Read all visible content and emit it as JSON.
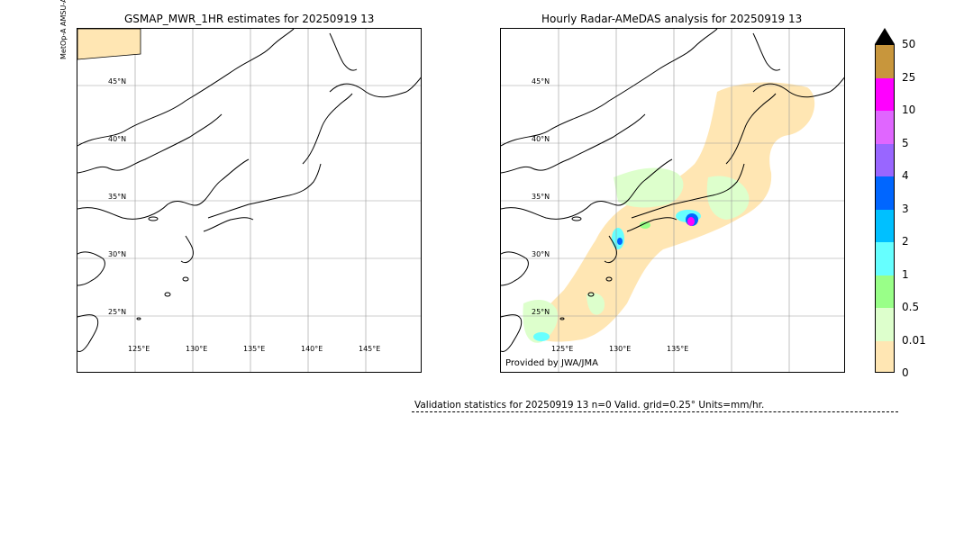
{
  "left_panel": {
    "title": "GSMAP_MWR_1HR estimates for 20250919 13",
    "satellite_label": "MetOp-A AMSU-A/MHS",
    "lat_labels": [
      "45°N",
      "40°N",
      "35°N",
      "30°N",
      "25°N"
    ],
    "lon_labels": [
      "125°E",
      "130°E",
      "135°E",
      "140°E",
      "145°E"
    ]
  },
  "right_panel": {
    "title": "Hourly Radar-AMeDAS analysis for 20250919 13",
    "lat_labels": [
      "45°N",
      "40°N",
      "35°N",
      "30°N",
      "25°N"
    ],
    "lon_labels": [
      "125°E",
      "130°E",
      "135°E"
    ],
    "credit": "Provided by JWA/JMA"
  },
  "colorbar": {
    "ticks": [
      "50",
      "25",
      "10",
      "5",
      "4",
      "3",
      "2",
      "1",
      "0.5",
      "0.01",
      "0"
    ],
    "colors": [
      "#c8963c",
      "#ff00ff",
      "#e066ff",
      "#9966ff",
      "#0066ff",
      "#00c0ff",
      "#66ffff",
      "#99ff88",
      "#ddffcc",
      "#ffe6b3"
    ],
    "extend_color": "#000000"
  },
  "stats": {
    "text": "Validation statistics for 20250919 13  n=0 Valid. grid=0.25° Units=mm/hr."
  }
}
